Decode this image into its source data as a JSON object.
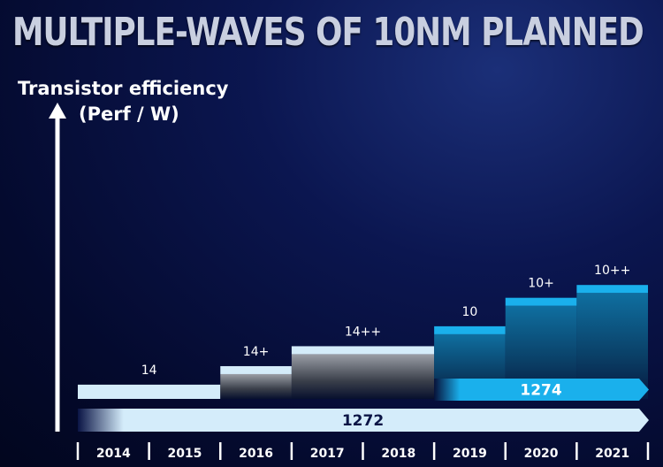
{
  "title": "MULTIPLE-WAVES OF 10NM PLANNED",
  "chart_data": {
    "type": "step-bar",
    "y_axis_label": [
      "Transistor efficiency",
      "(Perf / W)"
    ],
    "years": [
      "2014",
      "2015",
      "2016",
      "2017",
      "2018",
      "2019",
      "2020",
      "2021"
    ],
    "x_range": [
      2014,
      2022
    ],
    "y_range": [
      0,
      10
    ],
    "nodes": [
      {
        "label": "14",
        "start": 2014,
        "end": 2016,
        "efficiency": 1.0,
        "family": "14nm"
      },
      {
        "label": "14+",
        "start": 2016,
        "end": 2017,
        "efficiency": 2.3,
        "family": "14nm"
      },
      {
        "label": "14++",
        "start": 2017,
        "end": 2019,
        "efficiency": 3.7,
        "family": "14nm"
      },
      {
        "label": "10",
        "start": 2019,
        "end": 2020,
        "efficiency": 5.1,
        "family": "10nm"
      },
      {
        "label": "10+",
        "start": 2020,
        "end": 2021,
        "efficiency": 7.1,
        "family": "10nm"
      },
      {
        "label": "10++",
        "start": 2021,
        "end": 2022,
        "efficiency": 8.0,
        "family": "10nm"
      }
    ],
    "processes": [
      {
        "label": "1272",
        "start": 2014,
        "end": 2022
      },
      {
        "label": "1274",
        "start": 2019,
        "end": 2022
      }
    ]
  },
  "colors": {
    "light_bar": "#d4ecfa",
    "blue_bar": "#1ab0ec",
    "blue_bar_dark": "#0d5c86"
  }
}
